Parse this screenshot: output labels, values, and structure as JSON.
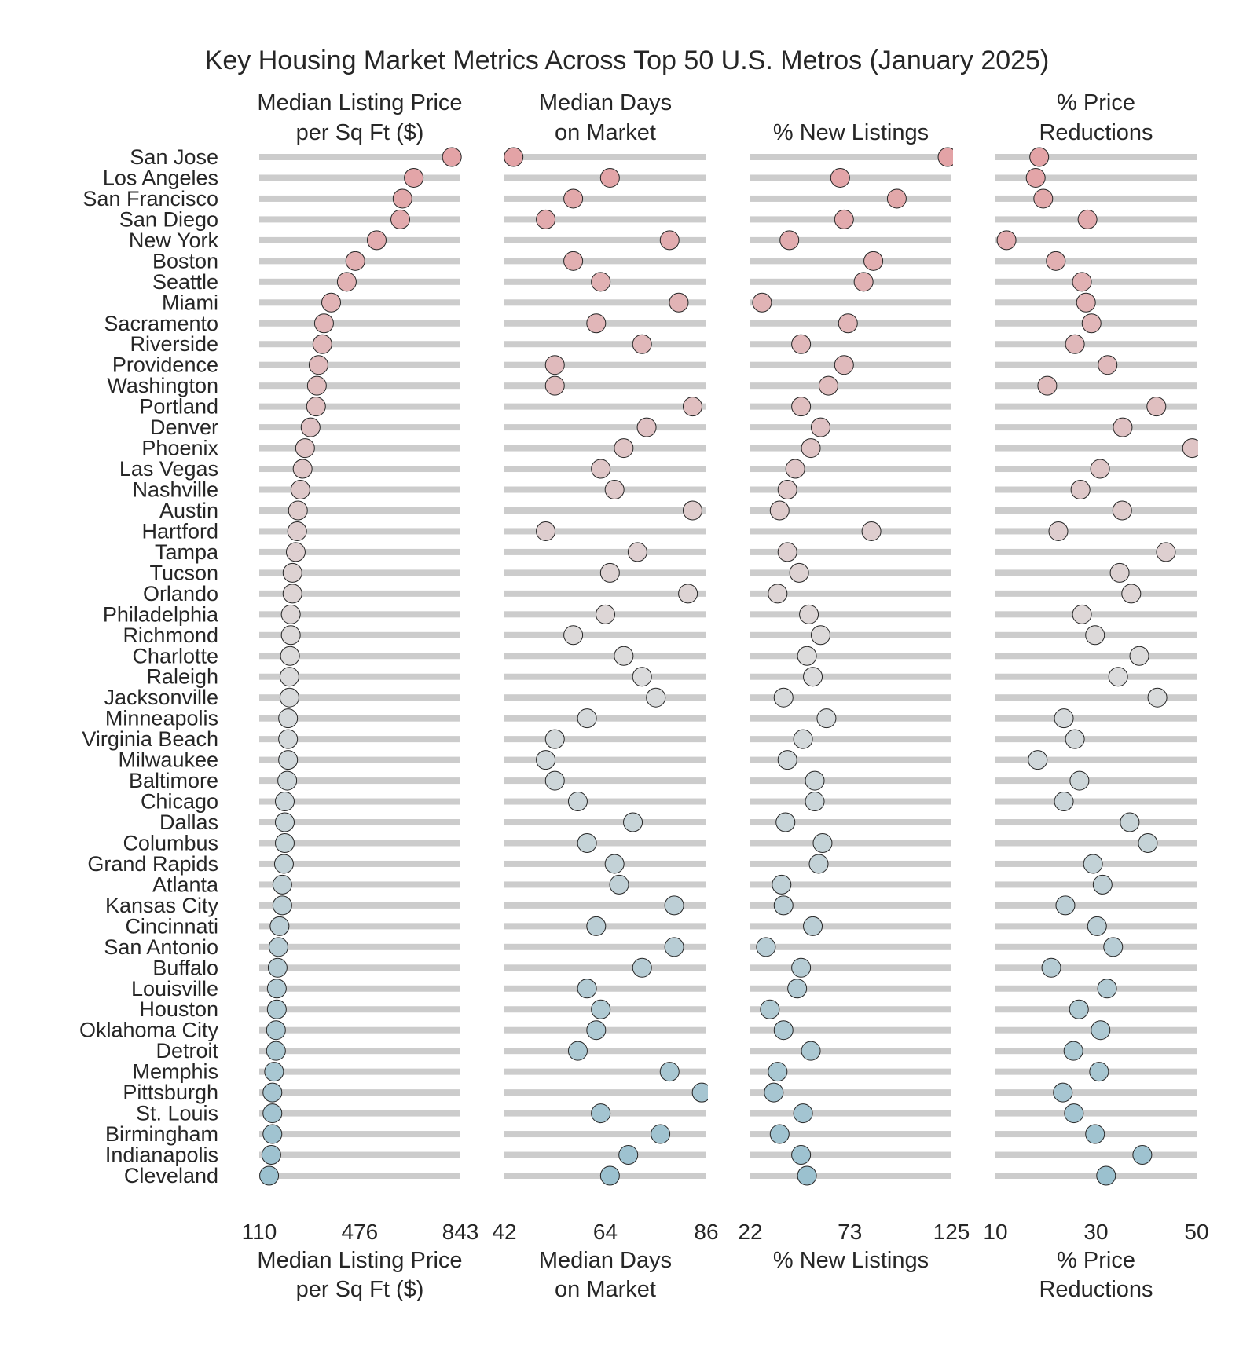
{
  "chart_data": {
    "type": "dot-strip",
    "title": "Key Housing Market Metrics Across Top 50 U.S. Metros (January 2025)",
    "categories": [
      "San Jose",
      "Los Angeles",
      "San Francisco",
      "San Diego",
      "New York",
      "Boston",
      "Seattle",
      "Miami",
      "Sacramento",
      "Riverside",
      "Providence",
      "Washington",
      "Portland",
      "Denver",
      "Phoenix",
      "Las Vegas",
      "Nashville",
      "Austin",
      "Hartford",
      "Tampa",
      "Tucson",
      "Orlando",
      "Philadelphia",
      "Richmond",
      "Charlotte",
      "Raleigh",
      "Jacksonville",
      "Minneapolis",
      "Virginia Beach",
      "Milwaukee",
      "Baltimore",
      "Chicago",
      "Dallas",
      "Columbus",
      "Grand Rapids",
      "Atlanta",
      "Kansas City",
      "Cincinnati",
      "San Antonio",
      "Buffalo",
      "Louisville",
      "Houston",
      "Oklahoma City",
      "Detroit",
      "Memphis",
      "Pittsburgh",
      "St. Louis",
      "Birmingham",
      "Indianapolis",
      "Cleveland"
    ],
    "color_scale": {
      "top": "#e3a3a6",
      "middle": "#dcdcdc",
      "bottom": "#9bc1cf"
    },
    "bar_color": "#cccccc",
    "panels": [
      {
        "name": "Median Listing Price per Sq Ft ($)",
        "title_lines": [
          "Median Listing Price",
          "per Sq Ft ($)"
        ],
        "xlabel_lines": [
          "Median Listing Price",
          "per Sq Ft ($)"
        ],
        "xlim": [
          110,
          843
        ],
        "ticks": [
          "110",
          "476",
          "843"
        ],
        "tick_values": [
          110,
          476,
          843
        ],
        "values": [
          812,
          673,
          632,
          624,
          538,
          460,
          429,
          372,
          346,
          340,
          326,
          320,
          317,
          297,
          277,
          268,
          260,
          251,
          248,
          243,
          231,
          231,
          225,
          225,
          222,
          220,
          220,
          215,
          215,
          215,
          212,
          203,
          203,
          203,
          200,
          194,
          194,
          184,
          180,
          177,
          174,
          174,
          171,
          171,
          164,
          158,
          158,
          158,
          154,
          146
        ]
      },
      {
        "name": "Median Days on Market",
        "title_lines": [
          "Median Days",
          "on Market"
        ],
        "xlabel_lines": [
          "Median Days",
          "on Market"
        ],
        "xlim": [
          42,
          86
        ],
        "ticks": [
          "42",
          "64",
          "86"
        ],
        "tick_values": [
          42,
          64,
          86
        ],
        "values": [
          44,
          65,
          57,
          51,
          78,
          57,
          63,
          80,
          62,
          72,
          53,
          53,
          83,
          73,
          68,
          63,
          66,
          83,
          51,
          71,
          65,
          82,
          64,
          57,
          68,
          72,
          75,
          60,
          53,
          51,
          53,
          58,
          70,
          60,
          66,
          67,
          79,
          62,
          79,
          72,
          60,
          63,
          62,
          58,
          78,
          85,
          63,
          76,
          69,
          65
        ]
      },
      {
        "name": "% New Listings",
        "title_lines": [
          "% New Listings"
        ],
        "xlabel_lines": [
          "% New Listings"
        ],
        "xlim": [
          22,
          125
        ],
        "ticks": [
          "22",
          "73",
          "125"
        ],
        "tick_values": [
          22,
          73,
          125
        ],
        "values": [
          123,
          68,
          97,
          70,
          42,
          85,
          80,
          28,
          72,
          48,
          70,
          62,
          48,
          58,
          53,
          45,
          41,
          37,
          84,
          41,
          47,
          36,
          52,
          58,
          51,
          54,
          39,
          61,
          49,
          41,
          55,
          55,
          40,
          59,
          57,
          38,
          39,
          54,
          30,
          48,
          46,
          32,
          39,
          53,
          36,
          34,
          49,
          37,
          48,
          51
        ]
      },
      {
        "name": "% Price Reductions",
        "title_lines": [
          "% Price",
          "Reductions"
        ],
        "xlabel_lines": [
          "% Price",
          "Reductions"
        ],
        "xlim": [
          10,
          50
        ],
        "ticks": [
          "10",
          "30",
          "50"
        ],
        "tick_values": [
          10,
          30,
          50
        ],
        "values": [
          18.7,
          18.0,
          19.5,
          28.3,
          12.2,
          22.0,
          27.2,
          28.0,
          29.1,
          25.8,
          32.3,
          20.3,
          42.0,
          35.3,
          49.1,
          30.8,
          26.9,
          35.2,
          22.5,
          43.9,
          34.7,
          37.0,
          27.2,
          29.8,
          38.6,
          34.4,
          42.2,
          23.6,
          25.8,
          18.4,
          26.7,
          23.6,
          36.7,
          40.3,
          29.4,
          31.3,
          23.9,
          30.2,
          33.4,
          21.1,
          32.2,
          26.6,
          30.9,
          25.5,
          30.6,
          23.4,
          25.6,
          29.8,
          39.2,
          32.0
        ]
      }
    ]
  }
}
